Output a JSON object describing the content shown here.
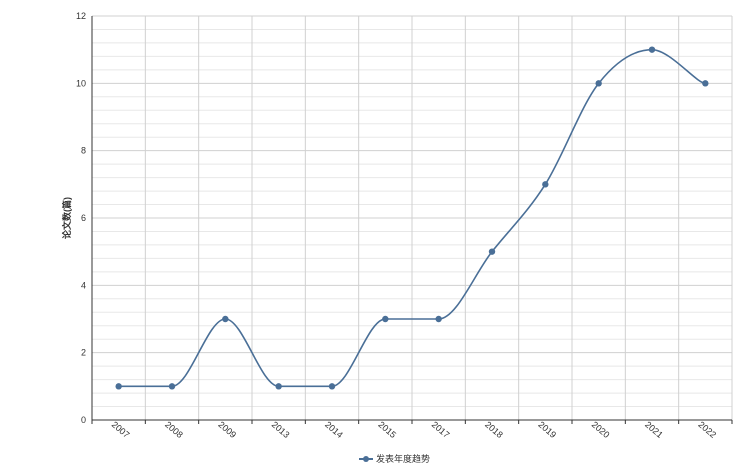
{
  "chart_data": {
    "type": "line",
    "smooth": true,
    "categories": [
      "2007",
      "2008",
      "2009",
      "2013",
      "2014",
      "2015",
      "2017",
      "2018",
      "2019",
      "2020",
      "2021",
      "2022"
    ],
    "series": [
      {
        "name": "发表年度趋势",
        "values": [
          1,
          1,
          3,
          1,
          1,
          3,
          3,
          5,
          7,
          10,
          11,
          10
        ]
      }
    ],
    "ylabel": "论文数(篇)",
    "ylim": [
      0,
      12
    ],
    "yticks": [
      "0",
      "2",
      "4",
      "6",
      "8",
      "10",
      "12"
    ],
    "grid": true,
    "legend_position": "bottom-center",
    "colors": {
      "line": "#4a6f97",
      "grid_major": "#d0d0d0",
      "grid_minor": "#e8e8e8",
      "axis": "#333333"
    }
  }
}
